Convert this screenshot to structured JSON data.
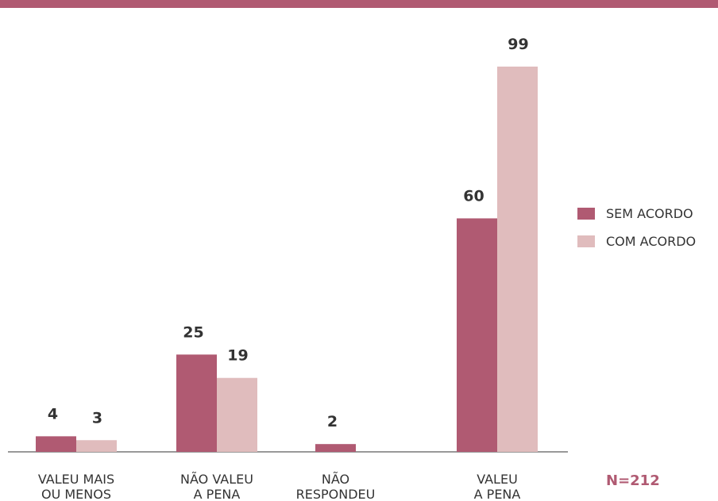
{
  "chart_data": {
    "type": "bar",
    "categories": [
      "VALEU MAIS\nOU MENOS",
      "NÃO VALEU\nA PENA",
      "NÃO\nRESPONDEU",
      "VALEU\nA PENA"
    ],
    "series": [
      {
        "name": "SEM ACORDO",
        "color": "#b05a72",
        "values": [
          4,
          25,
          2,
          60
        ]
      },
      {
        "name": "COM ACORDO",
        "color": "#e0bcbd",
        "values": [
          3,
          19,
          null,
          99
        ]
      }
    ],
    "annotation": "N=212"
  }
}
